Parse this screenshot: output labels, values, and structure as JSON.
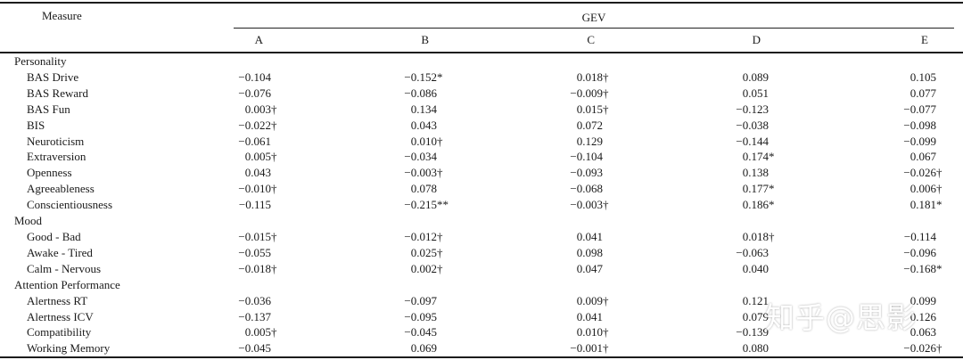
{
  "table": {
    "measure_header": "Measure",
    "col_group_header": "GEV",
    "columns": [
      "A",
      "B",
      "C",
      "D",
      "E"
    ],
    "sections": [
      {
        "label": "Personality",
        "rows": [
          {
            "label": "BAS Drive",
            "values": [
              "−0.104",
              "−0.152*",
              "0.018†",
              "0.089",
              "0.105"
            ]
          },
          {
            "label": "BAS Reward",
            "values": [
              "−0.076",
              "−0.086",
              "−0.009†",
              "0.051",
              "0.077"
            ]
          },
          {
            "label": "BAS Fun",
            "values": [
              "0.003†",
              "0.134",
              "0.015†",
              "−0.123",
              "−0.077"
            ]
          },
          {
            "label": "BIS",
            "values": [
              "−0.022†",
              "0.043",
              "0.072",
              "−0.038",
              "−0.098"
            ]
          },
          {
            "label": "Neuroticism",
            "values": [
              "−0.061",
              "0.010†",
              "0.129",
              "−0.144",
              "−0.099"
            ]
          },
          {
            "label": "Extraversion",
            "values": [
              "0.005†",
              "−0.034",
              "−0.104",
              "0.174*",
              "0.067"
            ]
          },
          {
            "label": "Openness",
            "values": [
              "0.043",
              "−0.003†",
              "−0.093",
              "0.138",
              "−0.026†"
            ]
          },
          {
            "label": "Agreeableness",
            "values": [
              "−0.010†",
              "0.078",
              "−0.068",
              "0.177*",
              "0.006†"
            ]
          },
          {
            "label": "Conscientiousness",
            "values": [
              "−0.115",
              "−0.215**",
              "−0.003†",
              "0.186*",
              "0.181*"
            ]
          }
        ]
      },
      {
        "label": "Mood",
        "rows": [
          {
            "label": "Good - Bad",
            "values": [
              "−0.015†",
              "−0.012†",
              "0.041",
              "0.018†",
              "−0.114"
            ]
          },
          {
            "label": "Awake - Tired",
            "values": [
              "−0.055",
              "0.025†",
              "0.098",
              "−0.063",
              "−0.096"
            ]
          },
          {
            "label": "Calm - Nervous",
            "values": [
              "−0.018†",
              "0.002†",
              "0.047",
              "0.040",
              "−0.168*"
            ]
          }
        ]
      },
      {
        "label": "Attention Performance",
        "rows": [
          {
            "label": "Alertness RT",
            "values": [
              "−0.036",
              "−0.097",
              "0.009†",
              "0.121",
              "0.099"
            ]
          },
          {
            "label": "Alertness ICV",
            "values": [
              "−0.137",
              "−0.095",
              "0.041",
              "0.079",
              "0.126"
            ]
          },
          {
            "label": "Compatibility",
            "values": [
              "0.005†",
              "−0.045",
              "0.010†",
              "−0.139",
              "0.063"
            ]
          },
          {
            "label": "Working Memory",
            "values": [
              "−0.045",
              "0.069",
              "−0.001†",
              "0.080",
              "−0.026†"
            ]
          }
        ]
      }
    ]
  },
  "watermark": "知乎@思影"
}
